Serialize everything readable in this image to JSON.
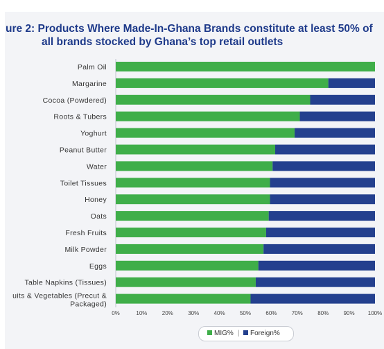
{
  "figure": {
    "title_prefix": "ure 2:",
    "title_line1": " Products Where Made-In-Ghana Brands constitute at least 50% of",
    "title_line2": "all brands stocked by Ghana’s top retail outlets"
  },
  "colors": {
    "mig": "#3fae49",
    "foreign": "#24408e"
  },
  "chart_data": {
    "type": "bar",
    "orientation": "horizontal",
    "stacked": true,
    "categories": [
      "Palm Oil",
      "Margarine",
      "Cocoa (Powdered)",
      "Roots & Tubers",
      "Yoghurt",
      "Peanut Butter",
      "Water",
      "Toilet Tissues",
      "Honey",
      "Oats",
      "Fresh Fruits",
      "Milk Powder",
      "Eggs",
      "Table Napkins (Tissues)",
      "uits & Vegetables (Precut & Packaged)"
    ],
    "series": [
      {
        "name": "MIG%",
        "values": [
          100,
          82,
          75,
          71,
          69,
          61.5,
          60.5,
          59.5,
          59.5,
          59,
          58,
          57,
          55,
          54,
          52
        ]
      },
      {
        "name": "Foreign%",
        "values": [
          0,
          18,
          25,
          29,
          31,
          38.5,
          39.5,
          40.5,
          40.5,
          41,
          42,
          43,
          45,
          46,
          48
        ]
      }
    ],
    "xticks": [
      "0%",
      "10%",
      "20%",
      "30%",
      "40%",
      "50%",
      "60%",
      "70%",
      "80%",
      "90%",
      "100%"
    ],
    "xlim": [
      0,
      100
    ],
    "legend_position": "bottom-center"
  }
}
